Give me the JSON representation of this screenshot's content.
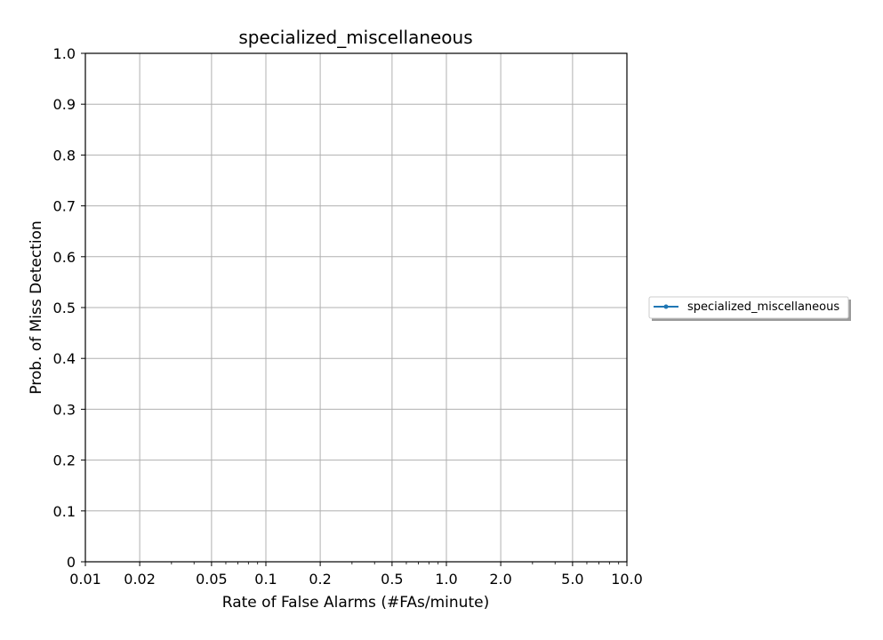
{
  "chart_data": {
    "type": "line",
    "title": "specialized_miscellaneous",
    "xlabel": "Rate of False Alarms (#FAs/minute)",
    "ylabel": "Prob. of Miss Detection",
    "x_scale": "log",
    "xlim": [
      0.01,
      10.0
    ],
    "ylim": [
      0,
      1.0
    ],
    "x_ticks": [
      0.01,
      0.02,
      0.05,
      0.1,
      0.2,
      0.5,
      1.0,
      2.0,
      5.0,
      10.0
    ],
    "x_tick_labels": [
      "0.01",
      "0.02",
      "0.05",
      "0.1",
      "0.2",
      "0.5",
      "1.0",
      "2.0",
      "5.0",
      "10.0"
    ],
    "y_ticks": [
      0,
      0.1,
      0.2,
      0.3,
      0.4,
      0.5,
      0.6,
      0.7,
      0.8,
      0.9,
      1.0
    ],
    "y_tick_labels": [
      "0",
      "0.1",
      "0.2",
      "0.3",
      "0.4",
      "0.5",
      "0.6",
      "0.7",
      "0.8",
      "0.9",
      "1.0"
    ],
    "grid": true,
    "legend_position": "outside-right",
    "series": [
      {
        "name": "specialized_miscellaneous",
        "color": "#1f77b4",
        "marker": "dot",
        "x": [],
        "y": []
      }
    ]
  }
}
